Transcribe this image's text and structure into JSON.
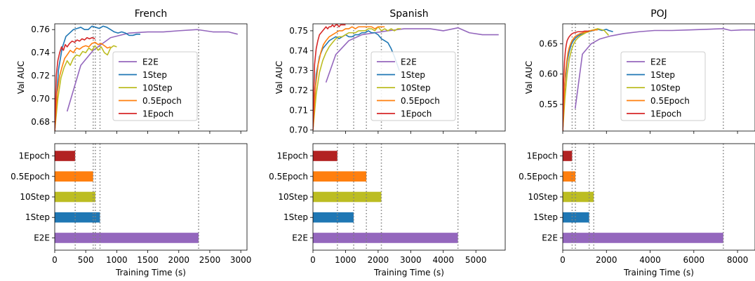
{
  "chart_data": [
    {
      "type": "line",
      "title": "French",
      "xlabel": "",
      "ylabel": "Val AUC",
      "xlim": [
        0,
        3100
      ],
      "ylim": [
        0.672,
        0.765
      ],
      "yticks": [
        0.68,
        0.7,
        0.72,
        0.74,
        0.76
      ],
      "ytick_labels": [
        "0.68",
        "0.70",
        "0.72",
        "0.74",
        "0.76"
      ],
      "vlines": [
        330,
        620,
        655,
        730,
        2320
      ],
      "legend": {
        "placement": "center-right",
        "entries": [
          "E2E",
          "1Step",
          "10Step",
          "0.5Epoch",
          "1Epoch"
        ]
      },
      "series": [
        {
          "name": "E2E",
          "color": "#9467bd",
          "x": [
            200,
            420,
            620,
            900,
            1200,
            1500,
            1750,
            2000,
            2300,
            2550,
            2800,
            2950
          ],
          "y": [
            0.689,
            0.729,
            0.742,
            0.753,
            0.757,
            0.758,
            0.758,
            0.759,
            0.76,
            0.758,
            0.758,
            0.756
          ]
        },
        {
          "name": "1Step",
          "color": "#1f77b4",
          "x": [
            0,
            60,
            120,
            180,
            240,
            300,
            360,
            420,
            480,
            540,
            600,
            660,
            720,
            780,
            840,
            900,
            960,
            1020,
            1080,
            1140,
            1200,
            1260,
            1320,
            1380
          ],
          "y": [
            0.672,
            0.725,
            0.744,
            0.754,
            0.757,
            0.76,
            0.761,
            0.762,
            0.76,
            0.76,
            0.763,
            0.762,
            0.761,
            0.763,
            0.762,
            0.76,
            0.758,
            0.757,
            0.758,
            0.757,
            0.755,
            0.755,
            0.756,
            0.756
          ]
        },
        {
          "name": "10Step",
          "color": "#bcbd22",
          "x": [
            0,
            50,
            100,
            150,
            200,
            250,
            300,
            350,
            400,
            450,
            500,
            550,
            600,
            650,
            700,
            750,
            800,
            850,
            900,
            950,
            1000
          ],
          "y": [
            0.672,
            0.7,
            0.718,
            0.727,
            0.733,
            0.729,
            0.735,
            0.738,
            0.737,
            0.741,
            0.74,
            0.744,
            0.742,
            0.746,
            0.742,
            0.745,
            0.74,
            0.738,
            0.744,
            0.746,
            0.745
          ]
        },
        {
          "name": "0.5Epoch",
          "color": "#ff7f0e",
          "x": [
            0,
            40,
            80,
            120,
            160,
            200,
            250,
            300,
            350,
            400,
            450,
            500,
            550,
            600,
            650,
            700,
            750,
            800,
            850,
            900
          ],
          "y": [
            0.672,
            0.705,
            0.72,
            0.728,
            0.735,
            0.738,
            0.742,
            0.74,
            0.744,
            0.743,
            0.745,
            0.746,
            0.745,
            0.748,
            0.749,
            0.747,
            0.748,
            0.746,
            0.744,
            0.745
          ]
        },
        {
          "name": "1Epoch",
          "color": "#d62728",
          "x": [
            0,
            25,
            50,
            80,
            110,
            140,
            170,
            200,
            240,
            280,
            320,
            360,
            400,
            440,
            480,
            520,
            560,
            600,
            650
          ],
          "y": [
            0.672,
            0.72,
            0.733,
            0.74,
            0.745,
            0.742,
            0.747,
            0.745,
            0.748,
            0.75,
            0.749,
            0.751,
            0.75,
            0.752,
            0.751,
            0.753,
            0.752,
            0.753,
            0.752
          ]
        }
      ]
    },
    {
      "type": "line",
      "title": "Spanish",
      "xlabel": "",
      "ylabel": "Val AUC",
      "xlim": [
        0,
        5900
      ],
      "ylim": [
        0.6995,
        0.7535
      ],
      "yticks": [
        0.7,
        0.71,
        0.72,
        0.73,
        0.74,
        0.75
      ],
      "ytick_labels": [
        "0.70",
        "0.71",
        "0.72",
        "0.73",
        "0.74",
        "0.75"
      ],
      "vlines": [
        750,
        1250,
        1640,
        2100,
        4450
      ],
      "legend": {
        "placement": "center-right",
        "entries": [
          "E2E",
          "1Step",
          "10Step",
          "0.5Epoch",
          "1Epoch"
        ]
      },
      "series": [
        {
          "name": "E2E",
          "color": "#9467bd",
          "x": [
            400,
            700,
            1100,
            1500,
            1900,
            2300,
            2800,
            3200,
            3600,
            4000,
            4450,
            4800,
            5200,
            5700
          ],
          "y": [
            0.724,
            0.738,
            0.745,
            0.748,
            0.749,
            0.75,
            0.751,
            0.751,
            0.751,
            0.75,
            0.7515,
            0.749,
            0.748,
            0.748
          ]
        },
        {
          "name": "1Step",
          "color": "#1f77b4",
          "x": [
            0,
            100,
            200,
            300,
            400,
            500,
            600,
            700,
            800,
            900,
            1000,
            1100,
            1200,
            1300,
            1400,
            1500,
            1600,
            1700,
            1800,
            1900,
            2000,
            2100,
            2200,
            2300,
            2400,
            2500,
            2650
          ],
          "y": [
            0.7,
            0.728,
            0.737,
            0.741,
            0.743,
            0.745,
            0.746,
            0.747,
            0.746,
            0.747,
            0.748,
            0.747,
            0.747,
            0.748,
            0.748,
            0.749,
            0.749,
            0.75,
            0.749,
            0.749,
            0.748,
            0.746,
            0.745,
            0.744,
            0.741,
            0.737,
            0.73
          ]
        },
        {
          "name": "10Step",
          "color": "#bcbd22",
          "x": [
            0,
            100,
            200,
            300,
            400,
            500,
            600,
            700,
            800,
            900,
            1000,
            1100,
            1200,
            1300,
            1400,
            1500,
            1600,
            1700,
            1800,
            1900,
            2000,
            2100,
            2200,
            2300,
            2400,
            2500,
            2600,
            2700
          ],
          "y": [
            0.7,
            0.718,
            0.729,
            0.735,
            0.739,
            0.742,
            0.744,
            0.746,
            0.747,
            0.747,
            0.748,
            0.749,
            0.749,
            0.749,
            0.75,
            0.75,
            0.75,
            0.751,
            0.751,
            0.75,
            0.752,
            0.75,
            0.751,
            0.75,
            0.751,
            0.75,
            0.751,
            0.751
          ]
        },
        {
          "name": "0.5Epoch",
          "color": "#ff7f0e",
          "x": [
            0,
            80,
            160,
            240,
            320,
            400,
            500,
            600,
            700,
            800,
            900,
            1000,
            1100,
            1200,
            1300,
            1400,
            1500,
            1600,
            1700,
            1800,
            1900,
            2000,
            2100,
            2200
          ],
          "y": [
            0.7,
            0.722,
            0.733,
            0.739,
            0.743,
            0.745,
            0.747,
            0.748,
            0.749,
            0.75,
            0.75,
            0.751,
            0.751,
            0.752,
            0.751,
            0.752,
            0.752,
            0.752,
            0.752,
            0.752,
            0.751,
            0.752,
            0.752,
            0.752
          ]
        },
        {
          "name": "1Epoch",
          "color": "#d62728",
          "x": [
            0,
            50,
            100,
            150,
            200,
            250,
            300,
            350,
            400,
            450,
            500,
            550,
            600,
            650,
            700,
            750,
            800,
            850,
            900,
            950,
            1000
          ],
          "y": [
            0.7,
            0.733,
            0.741,
            0.745,
            0.748,
            0.749,
            0.75,
            0.751,
            0.752,
            0.751,
            0.752,
            0.752,
            0.753,
            0.752,
            0.753,
            0.753,
            0.752,
            0.753,
            0.753,
            0.753,
            0.753
          ]
        }
      ]
    },
    {
      "type": "line",
      "title": "POJ",
      "xlabel": "",
      "ylabel": "Val AUC",
      "xlim": [
        0,
        8800
      ],
      "ylim": [
        0.506,
        0.683
      ],
      "yticks": [
        0.55,
        0.6,
        0.65
      ],
      "ytick_labels": [
        "0.55",
        "0.60",
        "0.65"
      ],
      "vlines": [
        430,
        580,
        1210,
        1420,
        7350
      ],
      "legend": {
        "placement": "center-right",
        "entries": [
          "E2E",
          "1Step",
          "10Step",
          "0.5Epoch",
          "1Epoch"
        ]
      },
      "series": [
        {
          "name": "E2E",
          "color": "#9467bd",
          "x": [
            570,
            900,
            1300,
            1700,
            2200,
            2800,
            3500,
            4200,
            5000,
            5800,
            6600,
            7350,
            7700,
            8200,
            8800
          ],
          "y": [
            0.543,
            0.633,
            0.65,
            0.658,
            0.663,
            0.667,
            0.67,
            0.672,
            0.672,
            0.673,
            0.674,
            0.675,
            0.672,
            0.673,
            0.673
          ]
        },
        {
          "name": "1Step",
          "color": "#1f77b4",
          "x": [
            0,
            100,
            200,
            300,
            400,
            500,
            600,
            700,
            800,
            900,
            1000,
            1100,
            1200,
            1300,
            1400,
            1500,
            1600,
            1700,
            1800,
            1900,
            2000,
            2100,
            2200,
            2300
          ],
          "y": [
            0.506,
            0.585,
            0.62,
            0.638,
            0.65,
            0.656,
            0.66,
            0.663,
            0.665,
            0.667,
            0.668,
            0.669,
            0.67,
            0.671,
            0.672,
            0.673,
            0.674,
            0.673,
            0.672,
            0.673,
            0.674,
            0.672,
            0.671,
            0.67
          ]
        },
        {
          "name": "10Step",
          "color": "#bcbd22",
          "x": [
            0,
            100,
            200,
            300,
            400,
            500,
            600,
            700,
            800,
            900,
            1000,
            1100,
            1200,
            1300,
            1400,
            1500,
            1600,
            1700,
            1800,
            1900,
            2000,
            2100
          ],
          "y": [
            0.506,
            0.56,
            0.6,
            0.625,
            0.64,
            0.65,
            0.656,
            0.66,
            0.663,
            0.665,
            0.667,
            0.669,
            0.67,
            0.672,
            0.673,
            0.674,
            0.675,
            0.674,
            0.673,
            0.672,
            0.668,
            0.664
          ]
        },
        {
          "name": "0.5Epoch",
          "color": "#ff7f0e",
          "x": [
            0,
            60,
            120,
            180,
            240,
            300,
            360,
            420,
            480,
            540,
            600,
            700,
            800,
            900,
            1000,
            1100,
            1200,
            1300,
            1400,
            1500,
            1600
          ],
          "y": [
            0.506,
            0.56,
            0.6,
            0.62,
            0.635,
            0.644,
            0.65,
            0.655,
            0.658,
            0.661,
            0.663,
            0.665,
            0.667,
            0.668,
            0.669,
            0.67,
            0.671,
            0.672,
            0.672,
            0.673,
            0.673
          ]
        },
        {
          "name": "1Epoch",
          "color": "#d62728",
          "x": [
            0,
            40,
            80,
            120,
            160,
            200,
            250,
            300,
            350,
            400,
            450,
            500,
            600,
            700,
            800,
            900,
            1000,
            1100,
            1200
          ],
          "y": [
            0.506,
            0.59,
            0.62,
            0.638,
            0.648,
            0.655,
            0.659,
            0.662,
            0.664,
            0.666,
            0.667,
            0.668,
            0.669,
            0.67,
            0.67,
            0.67,
            0.671,
            0.671,
            0.671
          ]
        }
      ]
    },
    {
      "type": "bar",
      "orientation": "horizontal",
      "title": "",
      "xlabel": "Training Time (s)",
      "ylabel": "",
      "xlim": [
        0,
        3100
      ],
      "xticks": [
        0,
        500,
        1000,
        1500,
        2000,
        2500,
        3000
      ],
      "xtick_labels": [
        "0",
        "500",
        "1000",
        "1500",
        "2000",
        "2500",
        "3000"
      ],
      "categories": [
        "1Epoch",
        "0.5Epoch",
        "10Step",
        "1Step",
        "E2E"
      ],
      "values": [
        330,
        620,
        655,
        730,
        2320
      ],
      "colors": [
        "#b22222",
        "#ff7f0e",
        "#bcbd22",
        "#1f77b4",
        "#9467bd"
      ],
      "vlines": [
        330,
        620,
        655,
        730,
        2320
      ]
    },
    {
      "type": "bar",
      "orientation": "horizontal",
      "title": "",
      "xlabel": "Training Time (s)",
      "ylabel": "",
      "xlim": [
        0,
        5900
      ],
      "xticks": [
        0,
        1000,
        2000,
        3000,
        4000,
        5000
      ],
      "xtick_labels": [
        "0",
        "1000",
        "2000",
        "3000",
        "4000",
        "5000"
      ],
      "categories": [
        "1Epoch",
        "0.5Epoch",
        "10Step",
        "1Step",
        "E2E"
      ],
      "values": [
        750,
        1640,
        2100,
        1250,
        4450
      ],
      "colors": [
        "#b22222",
        "#ff7f0e",
        "#bcbd22",
        "#1f77b4",
        "#9467bd"
      ],
      "vlines": [
        750,
        1250,
        1640,
        2100,
        4450
      ]
    },
    {
      "type": "bar",
      "orientation": "horizontal",
      "title": "",
      "xlabel": "Training Time (s)",
      "ylabel": "",
      "xlim": [
        0,
        8800
      ],
      "xticks": [
        0,
        2000,
        4000,
        6000,
        8000
      ],
      "xtick_labels": [
        "0",
        "2000",
        "4000",
        "6000",
        "8000"
      ],
      "categories": [
        "1Epoch",
        "0.5Epoch",
        "10Step",
        "1Step",
        "E2E"
      ],
      "values": [
        430,
        580,
        1420,
        1210,
        7350
      ],
      "colors": [
        "#b22222",
        "#ff7f0e",
        "#bcbd22",
        "#1f77b4",
        "#9467bd"
      ],
      "vlines": [
        430,
        580,
        1210,
        1420,
        7350
      ]
    }
  ]
}
